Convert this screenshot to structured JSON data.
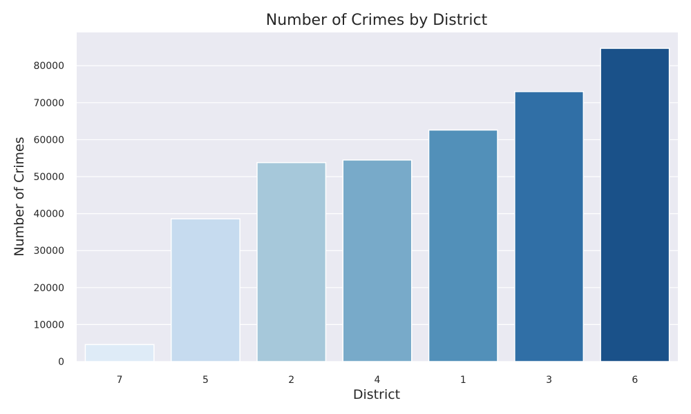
{
  "chart_data": {
    "type": "bar",
    "title": "Number of Crimes by District",
    "xlabel": "District",
    "ylabel": "Number of Crimes",
    "categories": [
      "7",
      "5",
      "2",
      "4",
      "1",
      "3",
      "6"
    ],
    "values": [
      4600,
      38600,
      53800,
      54500,
      62600,
      73000,
      84700
    ],
    "colors": [
      "#deebf7",
      "#c6dbef",
      "#a6c8da",
      "#78aac9",
      "#5290b9",
      "#306fa6",
      "#1a5189"
    ],
    "ylim": [
      0,
      89000
    ],
    "yticks": [
      0,
      10000,
      20000,
      30000,
      40000,
      50000,
      60000,
      70000,
      80000
    ],
    "ytick_labels": [
      "0",
      "10000",
      "20000",
      "30000",
      "40000",
      "50000",
      "60000",
      "70000",
      "80000"
    ],
    "grid": true,
    "background": "#eaeaf2",
    "grid_color": "#ffffff"
  }
}
